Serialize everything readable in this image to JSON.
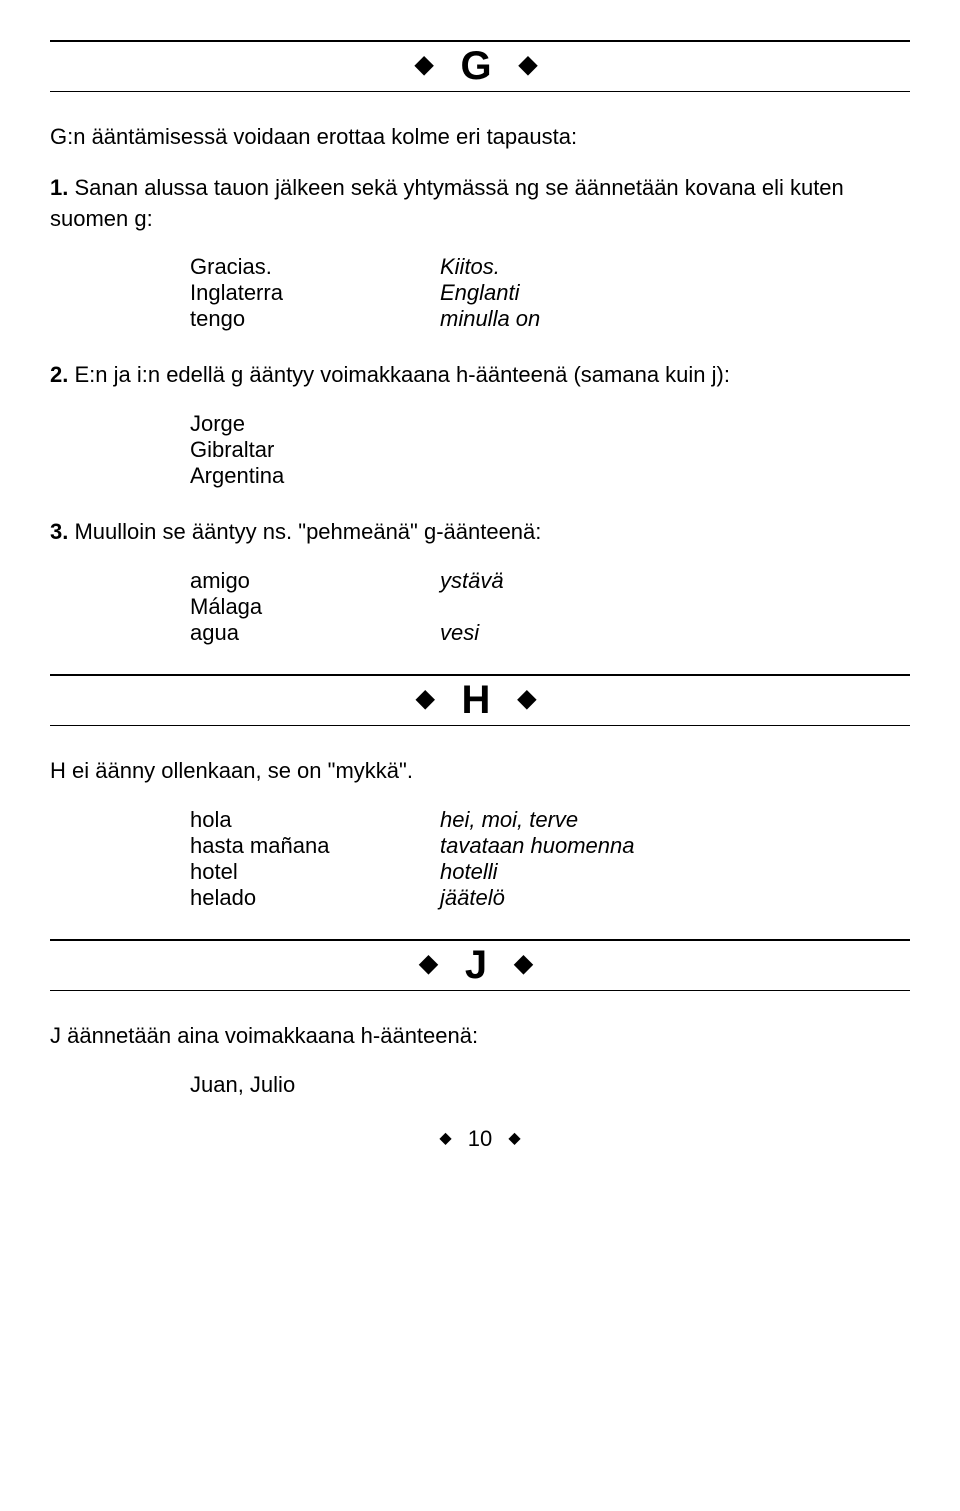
{
  "sectionG": {
    "letter": "G",
    "intro": "G:n ääntämisessä voidaan erottaa kolme eri tapausta:",
    "rule1": {
      "num": "1.",
      "text": " Sanan alussa tauon jälkeen sekä yhtymässä ng se äännetään kovana eli kuten suomen g:",
      "rows": [
        {
          "l": "Gracias.",
          "r": "Kiitos."
        },
        {
          "l": "Inglaterra",
          "r": "Englanti"
        },
        {
          "l": "tengo",
          "r": "minulla on"
        }
      ]
    },
    "rule2": {
      "num": "2.",
      "text": " E:n ja i:n edellä g ääntyy voimakkaana h-äänteenä (samana kuin j):",
      "items": [
        "Jorge",
        "Gibraltar",
        "Argentina"
      ]
    },
    "rule3": {
      "num": "3.",
      "text": " Muulloin se ääntyy ns. \"pehmeänä\" g-äänteenä:",
      "rows": [
        {
          "l": "amigo",
          "r": "ystävä"
        },
        {
          "l": "Málaga",
          "r": ""
        },
        {
          "l": "agua",
          "r": "vesi"
        }
      ]
    }
  },
  "sectionH": {
    "letter": "H",
    "intro": "H ei äänny ollenkaan, se on \"mykkä\".",
    "rows": [
      {
        "l": "hola",
        "r": "hei, moi, terve"
      },
      {
        "l": "hasta mañana",
        "r": "tavataan huomenna"
      },
      {
        "l": "hotel",
        "r": "hotelli"
      },
      {
        "l": "helado",
        "r": "jäätelö"
      }
    ]
  },
  "sectionJ": {
    "letter": "J",
    "intro": "J äännetään aina voimakkaana h-äänteenä:",
    "items": "Juan, Julio"
  },
  "pageNumber": "10"
}
